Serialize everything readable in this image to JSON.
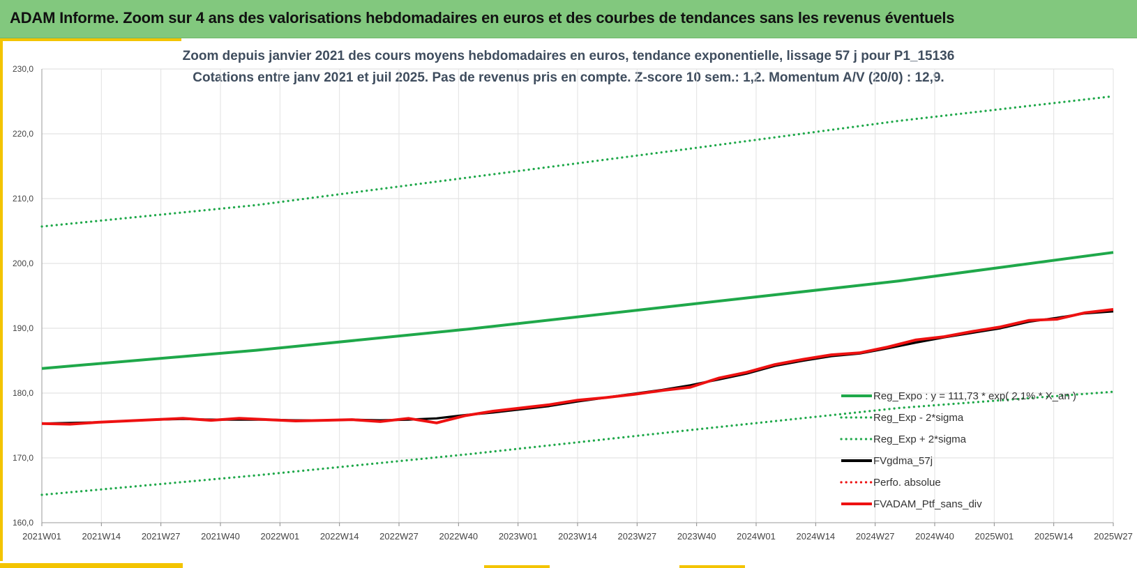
{
  "window": {
    "title": "ADAM Informe. Zoom sur 4 ans des valorisations hebdomadaires en euros et des courbes de tendances sans les revenus éventuels"
  },
  "colors": {
    "banner": "#82c87e",
    "accent": "#f3c400",
    "trend": "#1fa84a",
    "black_series": "#000000",
    "red_series": "#ee1111",
    "title_text": "#3f4d5e"
  },
  "chart_data": {
    "type": "line",
    "title": "Zoom depuis janvier 2021 des cours moyens hebdomadaires  en euros, tendance exponentielle, lissage 57 j pour P1_15136",
    "subtitle": "Cotations entre janv 2021 et juil 2025. Pas de revenus pris en compte. Z-score 10 sem.: 1,2. Momentum A/V (20/0) : 12,9.",
    "xlabel": "",
    "ylabel": "",
    "x_ticks": [
      "2021W01",
      "2021W14",
      "2021W27",
      "2021W40",
      "2022W01",
      "2022W14",
      "2022W27",
      "2022W40",
      "2023W01",
      "2023W14",
      "2023W27",
      "2023W40",
      "2024W01",
      "2024W14",
      "2024W27",
      "2024W40",
      "2025W01",
      "2025W14",
      "2025W27"
    ],
    "y_ticks": [
      "160,0",
      "170,0",
      "180,0",
      "190,0",
      "200,0",
      "210,0",
      "220,0",
      "230,0"
    ],
    "ylim": [
      160,
      230
    ],
    "grid": true,
    "legend_position": "bottom-right",
    "legend": [
      {
        "label": "Reg_Expo : y = 111,73 * exp( 2,1% * X_an )",
        "style": "solid",
        "color": "#1fa84a"
      },
      {
        "label": "Reg_Exp - 2*sigma",
        "style": "dotted",
        "color": "#1fa84a"
      },
      {
        "label": "Reg_Exp + 2*sigma",
        "style": "dotted",
        "color": "#1fa84a"
      },
      {
        "label": "FVgdma_57j",
        "style": "solid",
        "color": "#000000"
      },
      {
        "label": "Perfo. absolue",
        "style": "dotted",
        "color": "#ee1111"
      },
      {
        "label": "FVADAM_Ptf_sans_div",
        "style": "solid",
        "color": "#ee1111"
      }
    ],
    "series": [
      {
        "name": "Reg_Expo : y = 111,73 * exp( 2,1% * X_an )",
        "style": "solid",
        "color": "#1fa84a",
        "values": [
          183.8,
          186.6,
          189.9,
          193.6,
          197.3,
          201.7
        ]
      },
      {
        "name": "Reg_Exp - 2*sigma",
        "style": "dotted",
        "color": "#1fa84a",
        "values": [
          164.3,
          167.3,
          170.6,
          174.2,
          177.7,
          180.2
        ]
      },
      {
        "name": "Reg_Exp + 2*sigma",
        "style": "dotted",
        "color": "#1fa84a",
        "values": [
          205.7,
          209.0,
          213.3,
          217.6,
          222.0,
          225.8
        ]
      },
      {
        "name": "FVgdma_57j",
        "style": "solid",
        "color": "#000000",
        "values": [
          175.3,
          175.4,
          175.5,
          175.7,
          175.9,
          176.0,
          175.9,
          175.9,
          175.9,
          175.8,
          175.8,
          175.9,
          175.8,
          175.9,
          176.1,
          176.6,
          177.0,
          177.5,
          178.0,
          178.7,
          179.3,
          179.9,
          180.5,
          181.2,
          182.1,
          183.0,
          184.2,
          185.0,
          185.7,
          186.1,
          186.9,
          187.8,
          188.6,
          189.3,
          190.0,
          191.0,
          191.6,
          192.3,
          192.6
        ]
      },
      {
        "name": "FVADAM_Ptf_sans_div",
        "style": "solid",
        "color": "#ee1111",
        "values": [
          175.3,
          175.2,
          175.5,
          175.7,
          175.9,
          176.1,
          175.8,
          176.1,
          175.9,
          175.7,
          175.8,
          175.9,
          175.6,
          176.1,
          175.4,
          176.5,
          177.2,
          177.7,
          178.2,
          178.9,
          179.3,
          179.8,
          180.4,
          180.9,
          182.3,
          183.2,
          184.4,
          185.2,
          185.9,
          186.2,
          187.1,
          188.2,
          188.7,
          189.5,
          190.2,
          191.2,
          191.4,
          192.4,
          192.9
        ]
      }
    ]
  }
}
